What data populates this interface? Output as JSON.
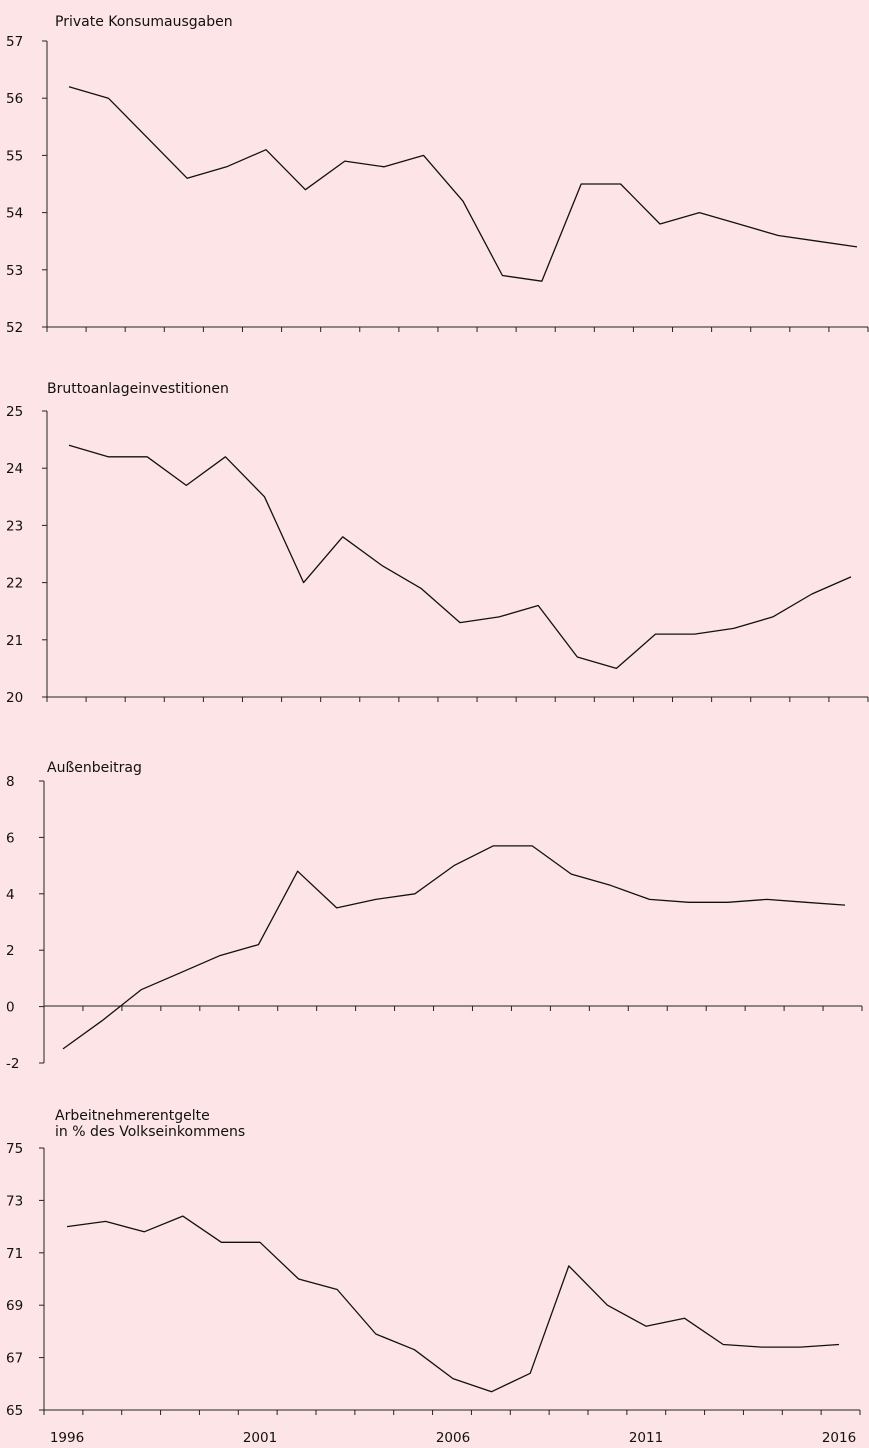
{
  "colors": {
    "background": "#fde4e6",
    "line": "#111111",
    "axis": "#222222"
  },
  "chart_data": [
    {
      "type": "line",
      "title": "Private Konsumausgaben",
      "title_lines": [
        "Private Konsumausgaben"
      ],
      "x": [
        1996,
        1997,
        1998,
        1999,
        2000,
        2001,
        2002,
        2003,
        2004,
        2005,
        2006,
        2007,
        2008,
        2009,
        2010,
        2011,
        2012,
        2013,
        2014,
        2015,
        2016
      ],
      "values": [
        56.2,
        56.0,
        55.3,
        54.6,
        54.8,
        55.1,
        54.4,
        54.9,
        54.8,
        55.0,
        54.2,
        52.9,
        52.8,
        54.5,
        54.5,
        53.8,
        54.0,
        53.8,
        53.6,
        53.5,
        53.4
      ],
      "ylim": [
        52,
        57
      ],
      "yticks": [
        52,
        53,
        54,
        55,
        56,
        57
      ],
      "ytick_labels": [
        "52",
        "53",
        "54",
        "55",
        "56",
        "57"
      ]
    },
    {
      "type": "line",
      "title": "Bruttoanlageinvestitionen",
      "title_lines": [
        "Bruttoanlageinvestitionen"
      ],
      "x": [
        1996,
        1997,
        1998,
        1999,
        2000,
        2001,
        2002,
        2003,
        2004,
        2005,
        2006,
        2007,
        2008,
        2009,
        2010,
        2011,
        2012,
        2013,
        2014,
        2015,
        2016
      ],
      "values": [
        24.4,
        24.2,
        24.2,
        23.7,
        24.2,
        23.5,
        22.0,
        22.8,
        22.3,
        21.9,
        21.3,
        21.4,
        21.6,
        20.7,
        20.5,
        21.1,
        21.1,
        21.2,
        21.4,
        21.8,
        22.1
      ],
      "ylim": [
        20,
        25
      ],
      "yticks": [
        20,
        21,
        22,
        23,
        24,
        25
      ],
      "ytick_labels": [
        "20",
        "21",
        "22",
        "23",
        "24",
        "25"
      ]
    },
    {
      "type": "line",
      "title": "Außenbeitrag",
      "title_lines": [
        "Außenbeitrag"
      ],
      "x": [
        1996,
        1997,
        1998,
        1999,
        2000,
        2001,
        2002,
        2003,
        2004,
        2005,
        2006,
        2007,
        2008,
        2009,
        2010,
        2011,
        2012,
        2013,
        2014,
        2015,
        2016
      ],
      "values": [
        -1.5,
        -0.5,
        0.6,
        1.2,
        1.8,
        2.2,
        4.8,
        3.5,
        3.8,
        4.0,
        5.0,
        5.7,
        5.7,
        4.7,
        4.3,
        3.8,
        3.7,
        3.7,
        3.8,
        3.7,
        3.6
      ],
      "ylim": [
        -2,
        8
      ],
      "yticks": [
        -2,
        0,
        2,
        4,
        6,
        8
      ],
      "ytick_labels": [
        "-2",
        "0",
        "2",
        "4",
        "6",
        "8"
      ],
      "baseline": 0
    },
    {
      "type": "line",
      "title": "Arbeitnehmerentgelte in % des Volkseinkommens",
      "title_lines": [
        "Arbeitnehmerentgelte",
        "in % des Volkseinkommens"
      ],
      "x": [
        1996,
        1997,
        1998,
        1999,
        2000,
        2001,
        2002,
        2003,
        2004,
        2005,
        2006,
        2007,
        2008,
        2009,
        2010,
        2011,
        2012,
        2013,
        2014,
        2015,
        2016
      ],
      "values": [
        72.0,
        72.2,
        71.8,
        72.4,
        71.4,
        71.4,
        70.0,
        69.6,
        67.9,
        67.3,
        66.2,
        65.7,
        66.4,
        70.5,
        69.0,
        68.2,
        68.5,
        67.5,
        67.4,
        67.4,
        67.5
      ],
      "ylim": [
        65,
        75
      ],
      "yticks": [
        65,
        67,
        69,
        71,
        73,
        75
      ],
      "ytick_labels": [
        "65",
        "67",
        "69",
        "71",
        "73",
        "75"
      ],
      "xtick_labels": [
        "1996",
        "2001",
        "2006",
        "2011",
        "2016"
      ],
      "xtick_label_years": [
        1996,
        2001,
        2006,
        2011,
        2016
      ]
    }
  ]
}
